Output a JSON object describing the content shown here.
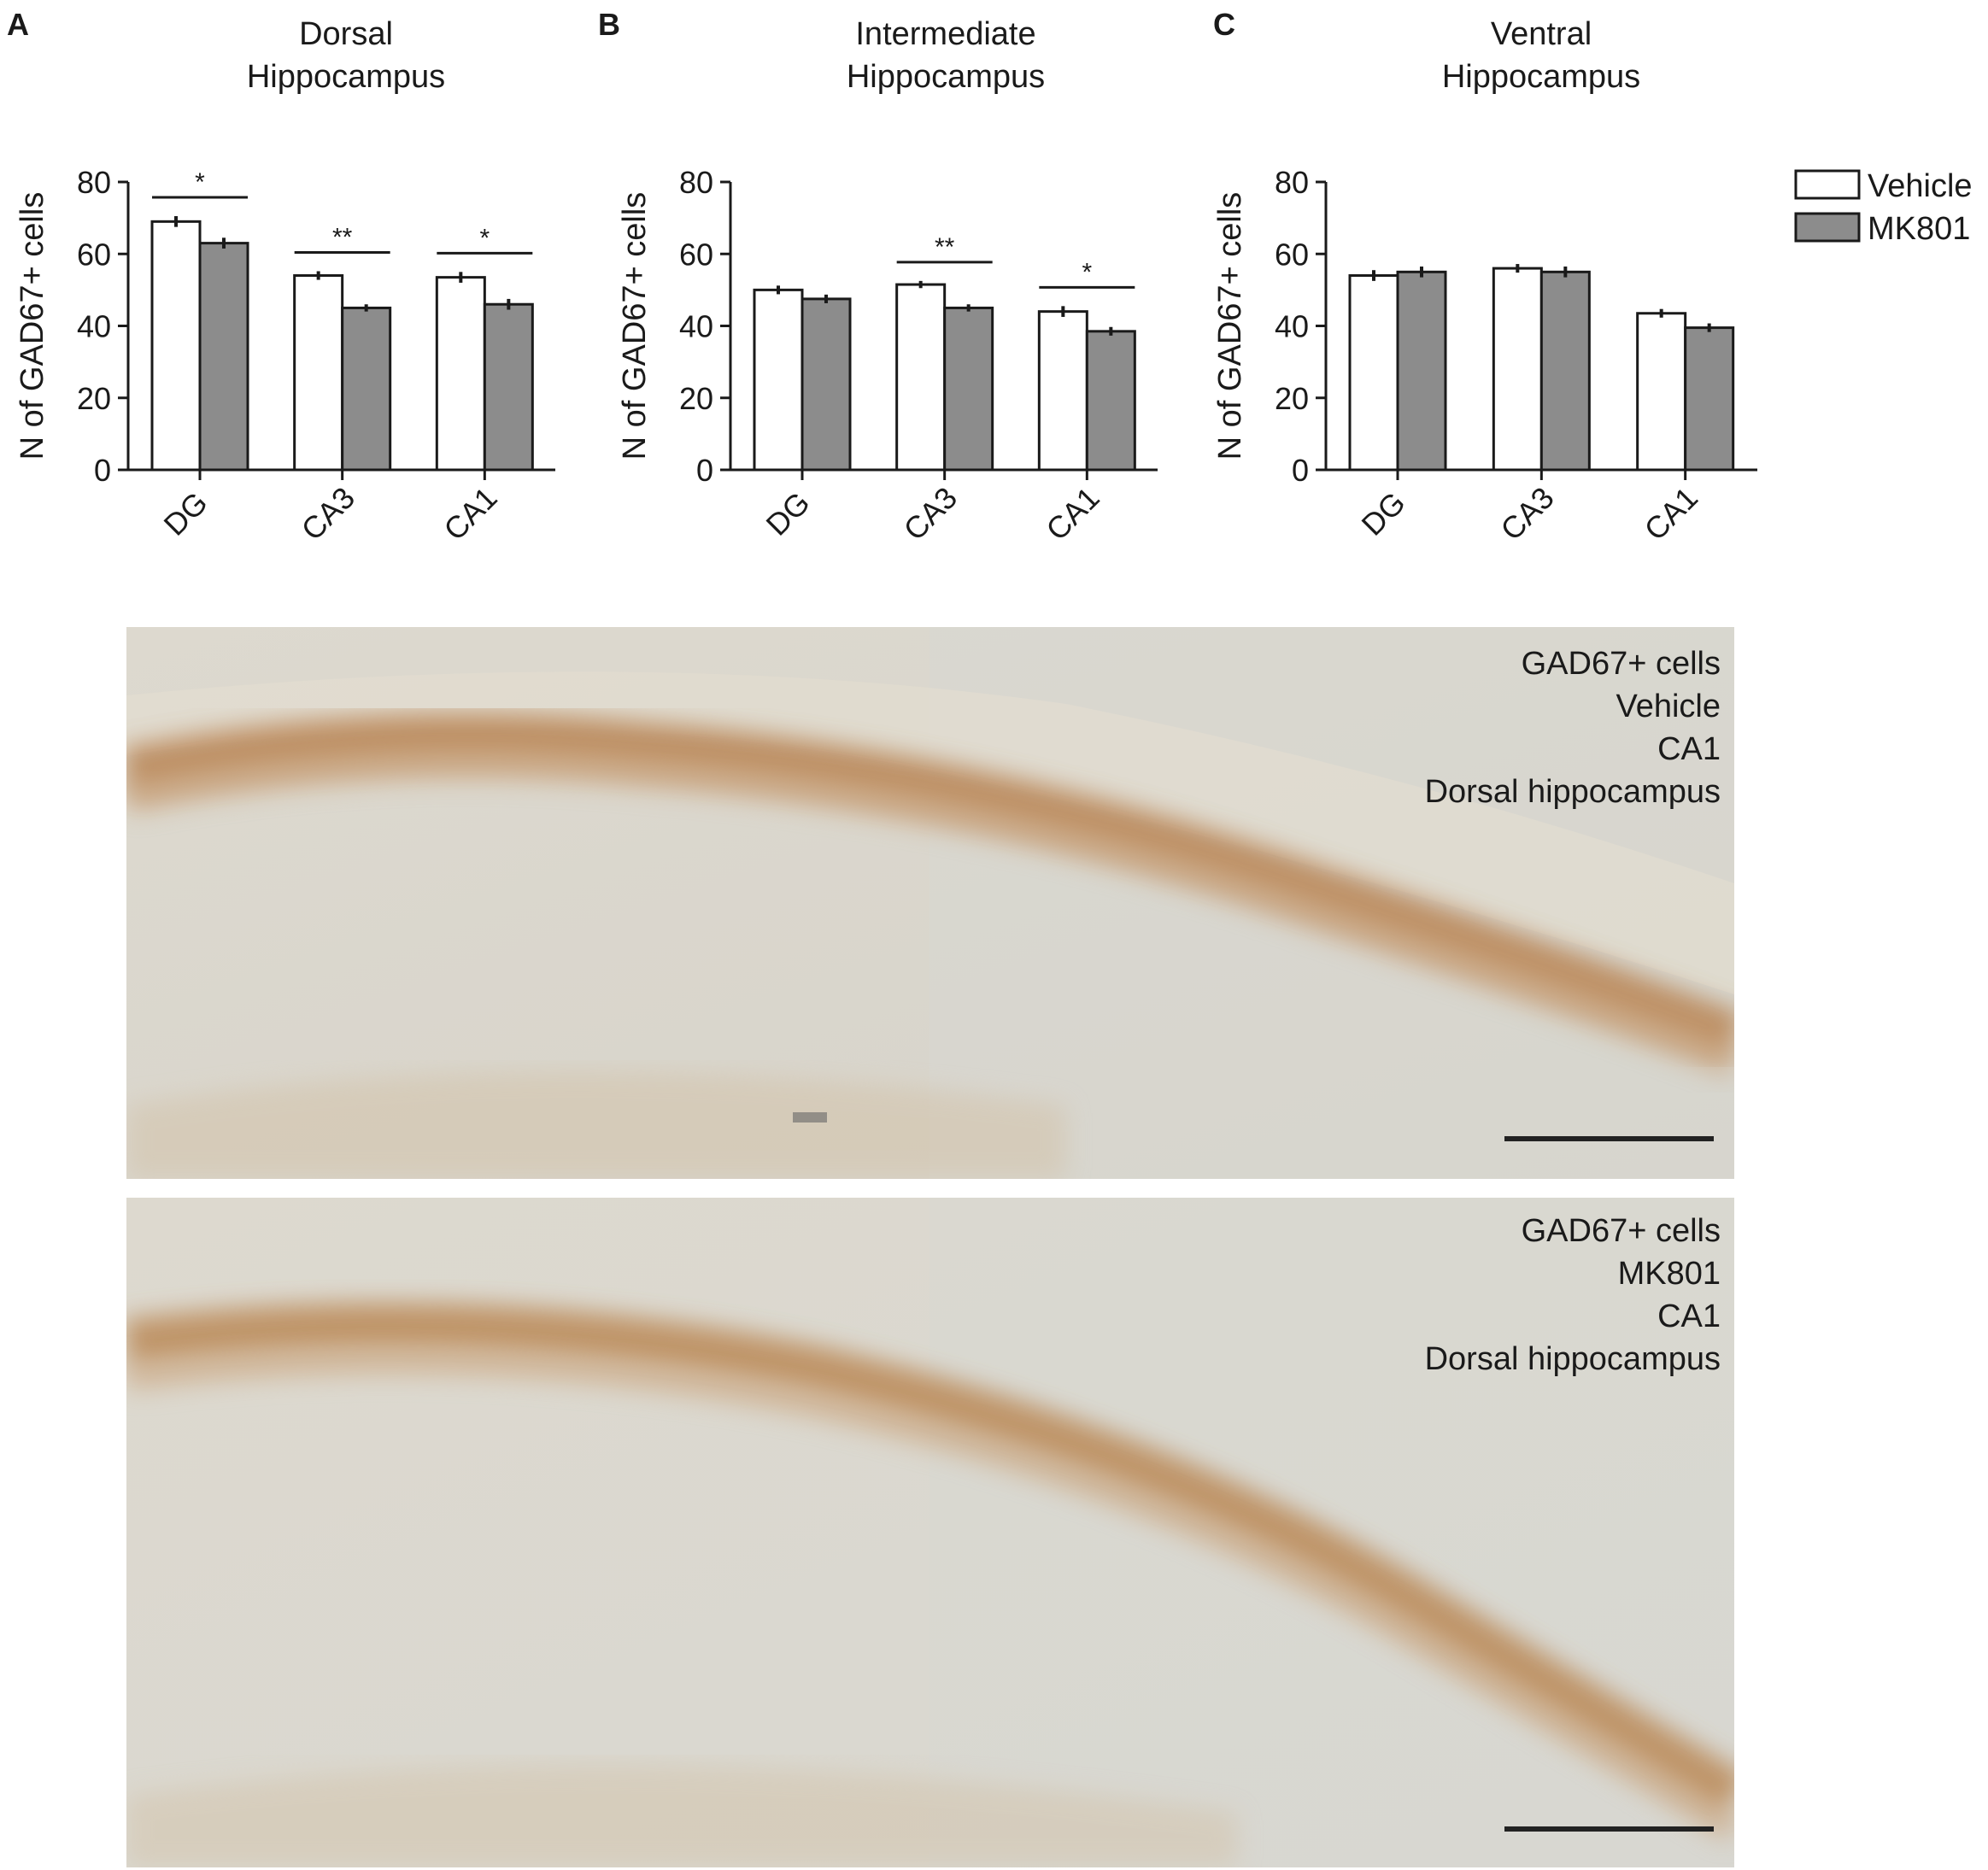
{
  "panels": [
    {
      "letter": "A",
      "title_line1": "Dorsal",
      "title_line2": "Hippocampus"
    },
    {
      "letter": "B",
      "title_line1": "Intermediate",
      "title_line2": "Hippocampus"
    },
    {
      "letter": "C",
      "title_line1": "Ventral",
      "title_line2": "Hippocampus"
    }
  ],
  "legend": {
    "items": [
      {
        "label": "Vehicle",
        "color": "#ffffff"
      },
      {
        "label": "MK801",
        "color": "#8c8c8c"
      }
    ]
  },
  "chart_data": [
    {
      "type": "bar",
      "title": "Dorsal Hippocampus",
      "ylabel": "N of GAD67+ cells",
      "xlabel": "",
      "ylim": [
        0,
        80
      ],
      "yticks": [
        "0",
        "20",
        "40",
        "60",
        "80"
      ],
      "categories": [
        "DG",
        "CA3",
        "CA1"
      ],
      "series": [
        {
          "name": "Vehicle",
          "color": "#ffffff",
          "values": [
            69,
            54,
            53.5
          ],
          "errors": [
            1.5,
            1.2,
            1.5
          ]
        },
        {
          "name": "MK801",
          "color": "#8c8c8c",
          "values": [
            63,
            45,
            46
          ],
          "errors": [
            1.5,
            1.0,
            1.5
          ]
        }
      ],
      "significance": [
        "*",
        "**",
        "*"
      ]
    },
    {
      "type": "bar",
      "title": "Intermediate Hippocampus",
      "ylabel": "N of GAD67+ cells",
      "xlabel": "",
      "ylim": [
        0,
        80
      ],
      "yticks": [
        "0",
        "20",
        "40",
        "60",
        "80"
      ],
      "categories": [
        "DG",
        "CA3",
        "CA1"
      ],
      "series": [
        {
          "name": "Vehicle",
          "color": "#ffffff",
          "values": [
            50,
            51.5,
            44
          ],
          "errors": [
            1.2,
            1.0,
            1.5
          ]
        },
        {
          "name": "MK801",
          "color": "#8c8c8c",
          "values": [
            47.5,
            45,
            38.5
          ],
          "errors": [
            1.2,
            1.0,
            1.2
          ]
        }
      ],
      "significance": [
        "",
        "**",
        "*"
      ]
    },
    {
      "type": "bar",
      "title": "Ventral Hippocampus",
      "ylabel": "N of GAD67+ cells",
      "xlabel": "",
      "ylim": [
        0,
        80
      ],
      "yticks": [
        "0",
        "20",
        "40",
        "60",
        "80"
      ],
      "categories": [
        "DG",
        "CA3",
        "CA1"
      ],
      "series": [
        {
          "name": "Vehicle",
          "color": "#ffffff",
          "values": [
            54,
            56,
            43.5
          ],
          "errors": [
            1.5,
            1.2,
            1.2
          ]
        },
        {
          "name": "MK801",
          "color": "#8c8c8c",
          "values": [
            55,
            55,
            39.5
          ],
          "errors": [
            1.5,
            1.5,
            1.2
          ]
        }
      ],
      "significance": [
        "",
        "",
        ""
      ]
    }
  ],
  "micrographs": [
    {
      "line1": "GAD67+ cells",
      "line2": "Vehicle",
      "line3": "CA1",
      "line4": "Dorsal hippocampus"
    },
    {
      "line1": "GAD67+ cells",
      "line2": "MK801",
      "line3": "CA1",
      "line4": "Dorsal hippocampus"
    }
  ],
  "colors": {
    "tissue_background": "#d9d6cc",
    "stain": "#b07a45"
  }
}
